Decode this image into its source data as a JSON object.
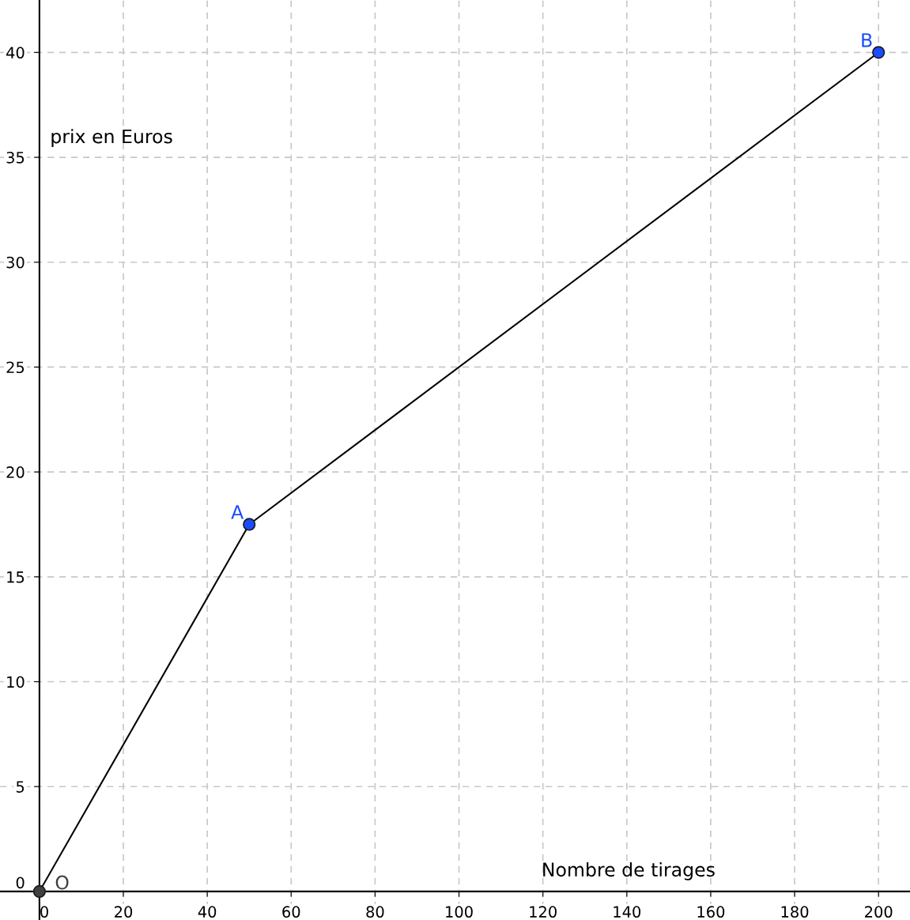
{
  "chart_data": {
    "type": "line",
    "xlabel": "Nombre de tirages",
    "ylabel": "prix en Euros",
    "x": [
      0,
      50,
      200
    ],
    "series": [
      {
        "color": "#000000",
        "values": [
          0,
          17.5,
          40
        ]
      },
      {
        "type": "scatter",
        "colors": [
          "#404040",
          "#1a4cff",
          "#1a4cff"
        ],
        "values": [
          0,
          17.5,
          40
        ],
        "marker": "circle"
      }
    ],
    "annotations": [
      {
        "text": "O",
        "x": 0,
        "y": 0
      },
      {
        "text": "A",
        "x": 50,
        "y": 17.5
      },
      {
        "text": "B",
        "x": 200,
        "y": 40
      }
    ],
    "xlim": [
      -9.4,
      207.5
    ],
    "ylim": [
      -1.36,
      42.5
    ],
    "xticks": [
      0,
      20,
      40,
      60,
      80,
      100,
      120,
      140,
      160,
      180,
      200
    ],
    "yticks": [
      0,
      5,
      10,
      15,
      20,
      25,
      30,
      35,
      40
    ],
    "grid": true,
    "line_style": "solid"
  }
}
